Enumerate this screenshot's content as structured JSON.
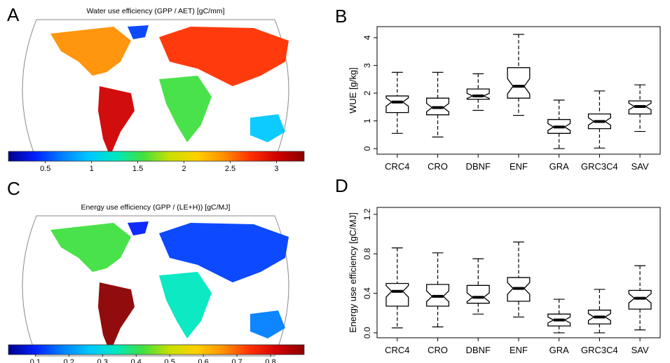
{
  "panels": {
    "a": {
      "letter": "A",
      "title": "Water use efficiency (GPP / AET) [gC/mm]"
    },
    "b": {
      "letter": "B"
    },
    "c": {
      "letter": "C",
      "title": "Energy use efficiency (GPP / (LE+H)) [gC/MJ]"
    },
    "d": {
      "letter": "D"
    }
  },
  "colorbar_colors": [
    "#00008b",
    "#0020ff",
    "#0080ff",
    "#00c8ff",
    "#00e8c0",
    "#40e040",
    "#c8e000",
    "#ffd000",
    "#ff9000",
    "#ff3000",
    "#d00000",
    "#8b0000"
  ],
  "chart_data": [
    {
      "panel": "A",
      "type": "heatmap",
      "title": "Water use efficiency (GPP / AET) [gC/mm]",
      "colorbar": {
        "ticks": [
          "0.5",
          "1",
          "1.5",
          "2",
          "2.5",
          "3"
        ],
        "range": [
          0.1,
          3.3
        ]
      }
    },
    {
      "panel": "B",
      "type": "box",
      "ylabel": "WUE [g/kg]",
      "ylim": [
        -0.2,
        4.4
      ],
      "yticks": [
        "0",
        "1",
        "2",
        "3",
        "4"
      ],
      "categories": [
        "CRC4",
        "CRO",
        "DBNF",
        "ENF",
        "GRA",
        "GRC3C4",
        "SAV"
      ],
      "boxes": [
        {
          "min": 0.55,
          "q1": 1.3,
          "median": 1.68,
          "q3": 1.9,
          "max": 2.75
        },
        {
          "min": 0.42,
          "q1": 1.22,
          "median": 1.48,
          "q3": 1.82,
          "max": 2.75
        },
        {
          "min": 1.38,
          "q1": 1.78,
          "median": 1.9,
          "q3": 2.15,
          "max": 2.7
        },
        {
          "min": 1.2,
          "q1": 1.82,
          "median": 2.25,
          "q3": 2.92,
          "max": 4.12
        },
        {
          "min": 0.0,
          "q1": 0.55,
          "median": 0.78,
          "q3": 1.05,
          "max": 1.75
        },
        {
          "min": 0.02,
          "q1": 0.72,
          "median": 0.98,
          "q3": 1.25,
          "max": 2.08
        },
        {
          "min": 0.62,
          "q1": 1.25,
          "median": 1.52,
          "q3": 1.72,
          "max": 2.3
        }
      ]
    },
    {
      "panel": "C",
      "type": "heatmap",
      "title": "Energy use efficiency (GPP / (LE+H)) [gC/MJ]",
      "colorbar": {
        "ticks": [
          "0.1",
          "0.2",
          "0.3",
          "0.4",
          "0.5",
          "0.6",
          "0.7",
          "0.8"
        ],
        "range": [
          0.02,
          0.9
        ]
      }
    },
    {
      "panel": "D",
      "type": "box",
      "ylabel": "Energy use efficiency [gC/MJ]",
      "ylim": [
        -0.05,
        1.27
      ],
      "yticks": [
        "0.0",
        "0.4",
        "0.8",
        "1.2"
      ],
      "categories": [
        "CRC4",
        "CRO",
        "DBNF",
        "ENF",
        "GRA",
        "GRC3C4",
        "SAV"
      ],
      "boxes": [
        {
          "min": 0.05,
          "q1": 0.27,
          "median": 0.42,
          "q3": 0.5,
          "max": 0.86
        },
        {
          "min": 0.06,
          "q1": 0.27,
          "median": 0.37,
          "q3": 0.49,
          "max": 0.81
        },
        {
          "min": 0.19,
          "q1": 0.3,
          "median": 0.36,
          "q3": 0.48,
          "max": 0.75
        },
        {
          "min": 0.16,
          "q1": 0.32,
          "median": 0.45,
          "q3": 0.56,
          "max": 0.92
        },
        {
          "min": 0.0,
          "q1": 0.07,
          "median": 0.13,
          "q3": 0.19,
          "max": 0.34
        },
        {
          "min": 0.0,
          "q1": 0.09,
          "median": 0.16,
          "q3": 0.23,
          "max": 0.44
        },
        {
          "min": 0.03,
          "q1": 0.24,
          "median": 0.35,
          "q3": 0.43,
          "max": 0.68
        }
      ]
    }
  ]
}
